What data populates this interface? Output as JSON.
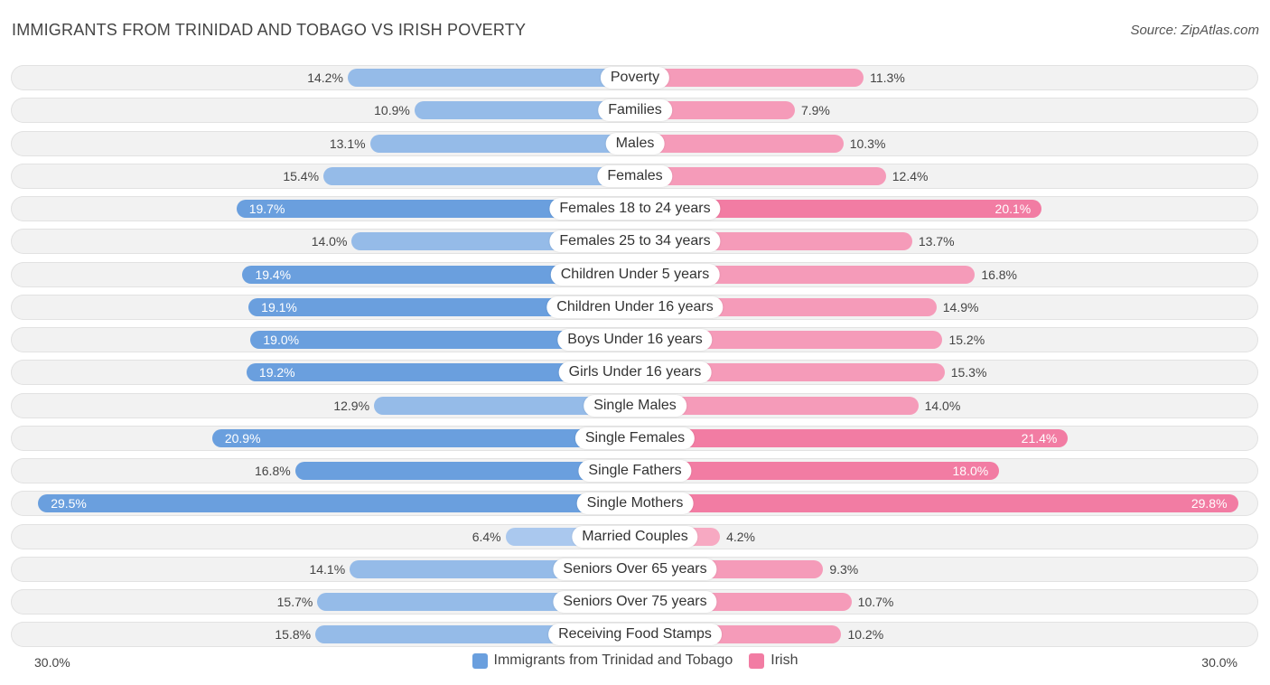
{
  "header": {
    "title": "IMMIGRANTS FROM TRINIDAD AND TOBAGO VS IRISH POVERTY",
    "source": "Source: ZipAtlas.com"
  },
  "colors": {
    "left_strong": "#6a9fde",
    "left_light": "#aac8ee",
    "right_strong": "#f27ca3",
    "right_light": "#f7a9c2"
  },
  "chart_data": {
    "type": "bar",
    "orientation": "horizontal-diverging",
    "title": "IMMIGRANTS FROM TRINIDAD AND TOBAGO VS IRISH POVERTY",
    "xlim": [
      -30,
      30
    ],
    "axis_labels": {
      "left": "30.0%",
      "right": "30.0%"
    },
    "categories": [
      "Poverty",
      "Families",
      "Males",
      "Females",
      "Females 18 to 24 years",
      "Females 25 to 34 years",
      "Children Under 5 years",
      "Children Under 16 years",
      "Boys Under 16 years",
      "Girls Under 16 years",
      "Single Males",
      "Single Females",
      "Single Fathers",
      "Single Mothers",
      "Married Couples",
      "Seniors Over 65 years",
      "Seniors Over 75 years",
      "Receiving Food Stamps"
    ],
    "series": [
      {
        "name": "Immigrants from Trinidad and Tobago",
        "values": [
          14.2,
          10.9,
          13.1,
          15.4,
          19.7,
          14.0,
          19.4,
          19.1,
          19.0,
          19.2,
          12.9,
          20.9,
          16.8,
          29.5,
          6.4,
          14.1,
          15.7,
          15.8
        ],
        "labels": [
          "14.2%",
          "10.9%",
          "13.1%",
          "15.4%",
          "19.7%",
          "14.0%",
          "19.4%",
          "19.1%",
          "19.0%",
          "19.2%",
          "12.9%",
          "20.9%",
          "16.8%",
          "29.5%",
          "6.4%",
          "14.1%",
          "15.7%",
          "15.8%"
        ]
      },
      {
        "name": "Irish",
        "values": [
          11.3,
          7.9,
          10.3,
          12.4,
          20.1,
          13.7,
          16.8,
          14.9,
          15.2,
          15.3,
          14.0,
          21.4,
          18.0,
          29.8,
          4.2,
          9.3,
          10.7,
          10.2
        ],
        "labels": [
          "11.3%",
          "7.9%",
          "10.3%",
          "12.4%",
          "20.1%",
          "13.7%",
          "16.8%",
          "14.9%",
          "15.2%",
          "15.3%",
          "14.0%",
          "21.4%",
          "18.0%",
          "29.8%",
          "4.2%",
          "9.3%",
          "10.7%",
          "10.2%"
        ]
      }
    ],
    "legend": {
      "position": "bottom-center",
      "entries": [
        "Immigrants from Trinidad and Tobago",
        "Irish"
      ]
    }
  }
}
